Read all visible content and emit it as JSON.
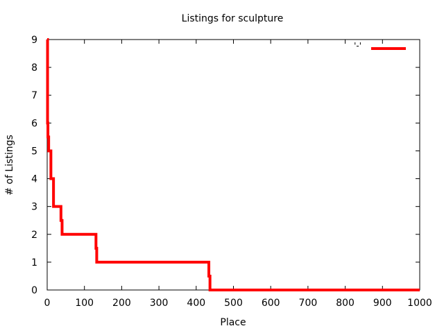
{
  "chart_data": {
    "type": "line",
    "title": "Listings for sculpture",
    "xlabel": "Place",
    "ylabel": "# of Listings",
    "xlim": [
      0,
      1000
    ],
    "ylim": [
      0,
      9
    ],
    "xticks": [
      0,
      100,
      200,
      300,
      400,
      500,
      600,
      700,
      800,
      900,
      1000
    ],
    "yticks": [
      0,
      1,
      2,
      3,
      4,
      5,
      6,
      7,
      8,
      9
    ],
    "grid": false,
    "legend_position": "top-right",
    "series": [
      {
        "name": "'-'",
        "color": "#ff0000",
        "step": true,
        "x": [
          0,
          1,
          2,
          4,
          6,
          8,
          10,
          17,
          37,
          40,
          131,
          133,
          434,
          437,
          1000
        ],
        "y": [
          9,
          6,
          5.5,
          5,
          5,
          5,
          4,
          3,
          2.5,
          2,
          1.5,
          1,
          0.5,
          0,
          0
        ]
      }
    ]
  }
}
